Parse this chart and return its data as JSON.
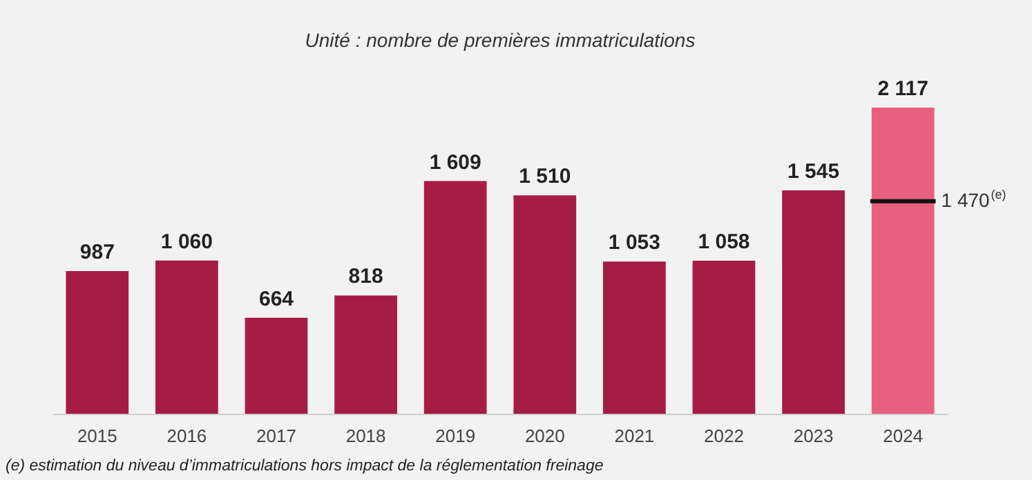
{
  "chart_data": {
    "type": "bar",
    "subtitle": "Unité : nombre de premières immatriculations",
    "categories": [
      "2015",
      "2016",
      "2017",
      "2018",
      "2019",
      "2020",
      "2021",
      "2022",
      "2023",
      "2024"
    ],
    "values": [
      987,
      1060,
      664,
      818,
      1609,
      1510,
      1053,
      1058,
      1545,
      2117
    ],
    "colors": [
      "#a51c45",
      "#a51c45",
      "#a51c45",
      "#a51c45",
      "#a51c45",
      "#a51c45",
      "#a51c45",
      "#a51c45",
      "#a51c45",
      "#e8607f"
    ],
    "value_labels": [
      "987",
      "1 060",
      "664",
      "818",
      "1 609",
      "1 510",
      "1 053",
      "1 058",
      "1 545",
      "2 117"
    ],
    "ref_lines": [
      {
        "axis": "y",
        "value": 1470,
        "label": "1 470$^{(e)}$",
        "color": "#111111"
      }
    ],
    "annotations": [
      "(e) estimation du niveau d’immatriculations hors impact de la réglementation freinage"
    ]
  }
}
